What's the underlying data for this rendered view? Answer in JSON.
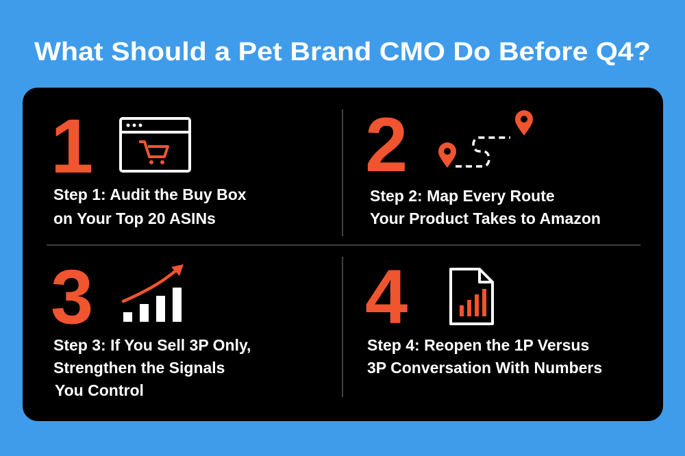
{
  "title": "What Should a Pet Brand CMO Do Before Q4?",
  "steps": [
    {
      "number": 1,
      "lines": [
        "Step 1: Audit the Buy Box",
        "on Your Top 20 ASINs"
      ]
    },
    {
      "number": 2,
      "lines": [
        "Step 2: Map Every Route",
        "Your Product Takes to Amazon"
      ]
    },
    {
      "number": 3,
      "lines": [
        "Step 3: If You Sell 3P Only,",
        "Strengthen the Signals",
        "You Control"
      ]
    },
    {
      "number": 4,
      "lines": [
        "Step 4: Reopen the 1P Versus",
        "3P Conversation With Numbers"
      ]
    }
  ]
}
